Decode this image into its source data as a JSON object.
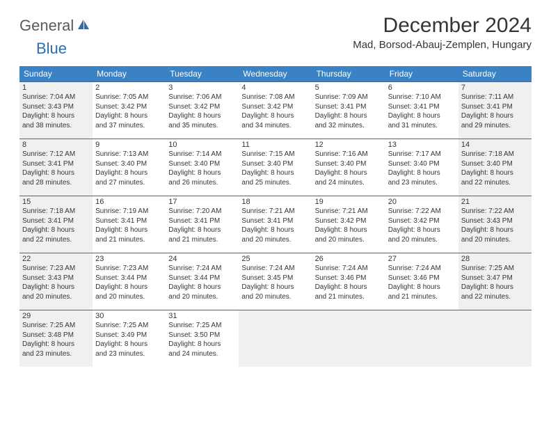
{
  "logo": {
    "general": "General",
    "blue": "Blue"
  },
  "title": "December 2024",
  "location": "Mad, Borsod-Abauj-Zemplen, Hungary",
  "colors": {
    "header_bg": "#3a82c4",
    "border": "#2a6db3",
    "text": "#333538",
    "shaded": "#f0f0f0",
    "white": "#ffffff"
  },
  "weekdays": [
    "Sunday",
    "Monday",
    "Tuesday",
    "Wednesday",
    "Thursday",
    "Friday",
    "Saturday"
  ],
  "days": [
    {
      "n": "1",
      "shaded": true,
      "sunrise": "Sunrise: 7:04 AM",
      "sunset": "Sunset: 3:43 PM",
      "day1": "Daylight: 8 hours",
      "day2": "and 38 minutes."
    },
    {
      "n": "2",
      "shaded": false,
      "sunrise": "Sunrise: 7:05 AM",
      "sunset": "Sunset: 3:42 PM",
      "day1": "Daylight: 8 hours",
      "day2": "and 37 minutes."
    },
    {
      "n": "3",
      "shaded": false,
      "sunrise": "Sunrise: 7:06 AM",
      "sunset": "Sunset: 3:42 PM",
      "day1": "Daylight: 8 hours",
      "day2": "and 35 minutes."
    },
    {
      "n": "4",
      "shaded": false,
      "sunrise": "Sunrise: 7:08 AM",
      "sunset": "Sunset: 3:42 PM",
      "day1": "Daylight: 8 hours",
      "day2": "and 34 minutes."
    },
    {
      "n": "5",
      "shaded": false,
      "sunrise": "Sunrise: 7:09 AM",
      "sunset": "Sunset: 3:41 PM",
      "day1": "Daylight: 8 hours",
      "day2": "and 32 minutes."
    },
    {
      "n": "6",
      "shaded": false,
      "sunrise": "Sunrise: 7:10 AM",
      "sunset": "Sunset: 3:41 PM",
      "day1": "Daylight: 8 hours",
      "day2": "and 31 minutes."
    },
    {
      "n": "7",
      "shaded": true,
      "sunrise": "Sunrise: 7:11 AM",
      "sunset": "Sunset: 3:41 PM",
      "day1": "Daylight: 8 hours",
      "day2": "and 29 minutes."
    },
    {
      "n": "8",
      "shaded": true,
      "sunrise": "Sunrise: 7:12 AM",
      "sunset": "Sunset: 3:41 PM",
      "day1": "Daylight: 8 hours",
      "day2": "and 28 minutes."
    },
    {
      "n": "9",
      "shaded": false,
      "sunrise": "Sunrise: 7:13 AM",
      "sunset": "Sunset: 3:40 PM",
      "day1": "Daylight: 8 hours",
      "day2": "and 27 minutes."
    },
    {
      "n": "10",
      "shaded": false,
      "sunrise": "Sunrise: 7:14 AM",
      "sunset": "Sunset: 3:40 PM",
      "day1": "Daylight: 8 hours",
      "day2": "and 26 minutes."
    },
    {
      "n": "11",
      "shaded": false,
      "sunrise": "Sunrise: 7:15 AM",
      "sunset": "Sunset: 3:40 PM",
      "day1": "Daylight: 8 hours",
      "day2": "and 25 minutes."
    },
    {
      "n": "12",
      "shaded": false,
      "sunrise": "Sunrise: 7:16 AM",
      "sunset": "Sunset: 3:40 PM",
      "day1": "Daylight: 8 hours",
      "day2": "and 24 minutes."
    },
    {
      "n": "13",
      "shaded": false,
      "sunrise": "Sunrise: 7:17 AM",
      "sunset": "Sunset: 3:40 PM",
      "day1": "Daylight: 8 hours",
      "day2": "and 23 minutes."
    },
    {
      "n": "14",
      "shaded": true,
      "sunrise": "Sunrise: 7:18 AM",
      "sunset": "Sunset: 3:40 PM",
      "day1": "Daylight: 8 hours",
      "day2": "and 22 minutes."
    },
    {
      "n": "15",
      "shaded": true,
      "sunrise": "Sunrise: 7:18 AM",
      "sunset": "Sunset: 3:41 PM",
      "day1": "Daylight: 8 hours",
      "day2": "and 22 minutes."
    },
    {
      "n": "16",
      "shaded": false,
      "sunrise": "Sunrise: 7:19 AM",
      "sunset": "Sunset: 3:41 PM",
      "day1": "Daylight: 8 hours",
      "day2": "and 21 minutes."
    },
    {
      "n": "17",
      "shaded": false,
      "sunrise": "Sunrise: 7:20 AM",
      "sunset": "Sunset: 3:41 PM",
      "day1": "Daylight: 8 hours",
      "day2": "and 21 minutes."
    },
    {
      "n": "18",
      "shaded": false,
      "sunrise": "Sunrise: 7:21 AM",
      "sunset": "Sunset: 3:41 PM",
      "day1": "Daylight: 8 hours",
      "day2": "and 20 minutes."
    },
    {
      "n": "19",
      "shaded": false,
      "sunrise": "Sunrise: 7:21 AM",
      "sunset": "Sunset: 3:42 PM",
      "day1": "Daylight: 8 hours",
      "day2": "and 20 minutes."
    },
    {
      "n": "20",
      "shaded": false,
      "sunrise": "Sunrise: 7:22 AM",
      "sunset": "Sunset: 3:42 PM",
      "day1": "Daylight: 8 hours",
      "day2": "and 20 minutes."
    },
    {
      "n": "21",
      "shaded": true,
      "sunrise": "Sunrise: 7:22 AM",
      "sunset": "Sunset: 3:43 PM",
      "day1": "Daylight: 8 hours",
      "day2": "and 20 minutes."
    },
    {
      "n": "22",
      "shaded": true,
      "sunrise": "Sunrise: 7:23 AM",
      "sunset": "Sunset: 3:43 PM",
      "day1": "Daylight: 8 hours",
      "day2": "and 20 minutes."
    },
    {
      "n": "23",
      "shaded": false,
      "sunrise": "Sunrise: 7:23 AM",
      "sunset": "Sunset: 3:44 PM",
      "day1": "Daylight: 8 hours",
      "day2": "and 20 minutes."
    },
    {
      "n": "24",
      "shaded": false,
      "sunrise": "Sunrise: 7:24 AM",
      "sunset": "Sunset: 3:44 PM",
      "day1": "Daylight: 8 hours",
      "day2": "and 20 minutes."
    },
    {
      "n": "25",
      "shaded": false,
      "sunrise": "Sunrise: 7:24 AM",
      "sunset": "Sunset: 3:45 PM",
      "day1": "Daylight: 8 hours",
      "day2": "and 20 minutes."
    },
    {
      "n": "26",
      "shaded": false,
      "sunrise": "Sunrise: 7:24 AM",
      "sunset": "Sunset: 3:46 PM",
      "day1": "Daylight: 8 hours",
      "day2": "and 21 minutes."
    },
    {
      "n": "27",
      "shaded": false,
      "sunrise": "Sunrise: 7:24 AM",
      "sunset": "Sunset: 3:46 PM",
      "day1": "Daylight: 8 hours",
      "day2": "and 21 minutes."
    },
    {
      "n": "28",
      "shaded": true,
      "sunrise": "Sunrise: 7:25 AM",
      "sunset": "Sunset: 3:47 PM",
      "day1": "Daylight: 8 hours",
      "day2": "and 22 minutes."
    },
    {
      "n": "29",
      "shaded": true,
      "sunrise": "Sunrise: 7:25 AM",
      "sunset": "Sunset: 3:48 PM",
      "day1": "Daylight: 8 hours",
      "day2": "and 23 minutes."
    },
    {
      "n": "30",
      "shaded": false,
      "sunrise": "Sunrise: 7:25 AM",
      "sunset": "Sunset: 3:49 PM",
      "day1": "Daylight: 8 hours",
      "day2": "and 23 minutes."
    },
    {
      "n": "31",
      "shaded": false,
      "sunrise": "Sunrise: 7:25 AM",
      "sunset": "Sunset: 3:50 PM",
      "day1": "Daylight: 8 hours",
      "day2": "and 24 minutes."
    }
  ],
  "trailing_empty": 4
}
